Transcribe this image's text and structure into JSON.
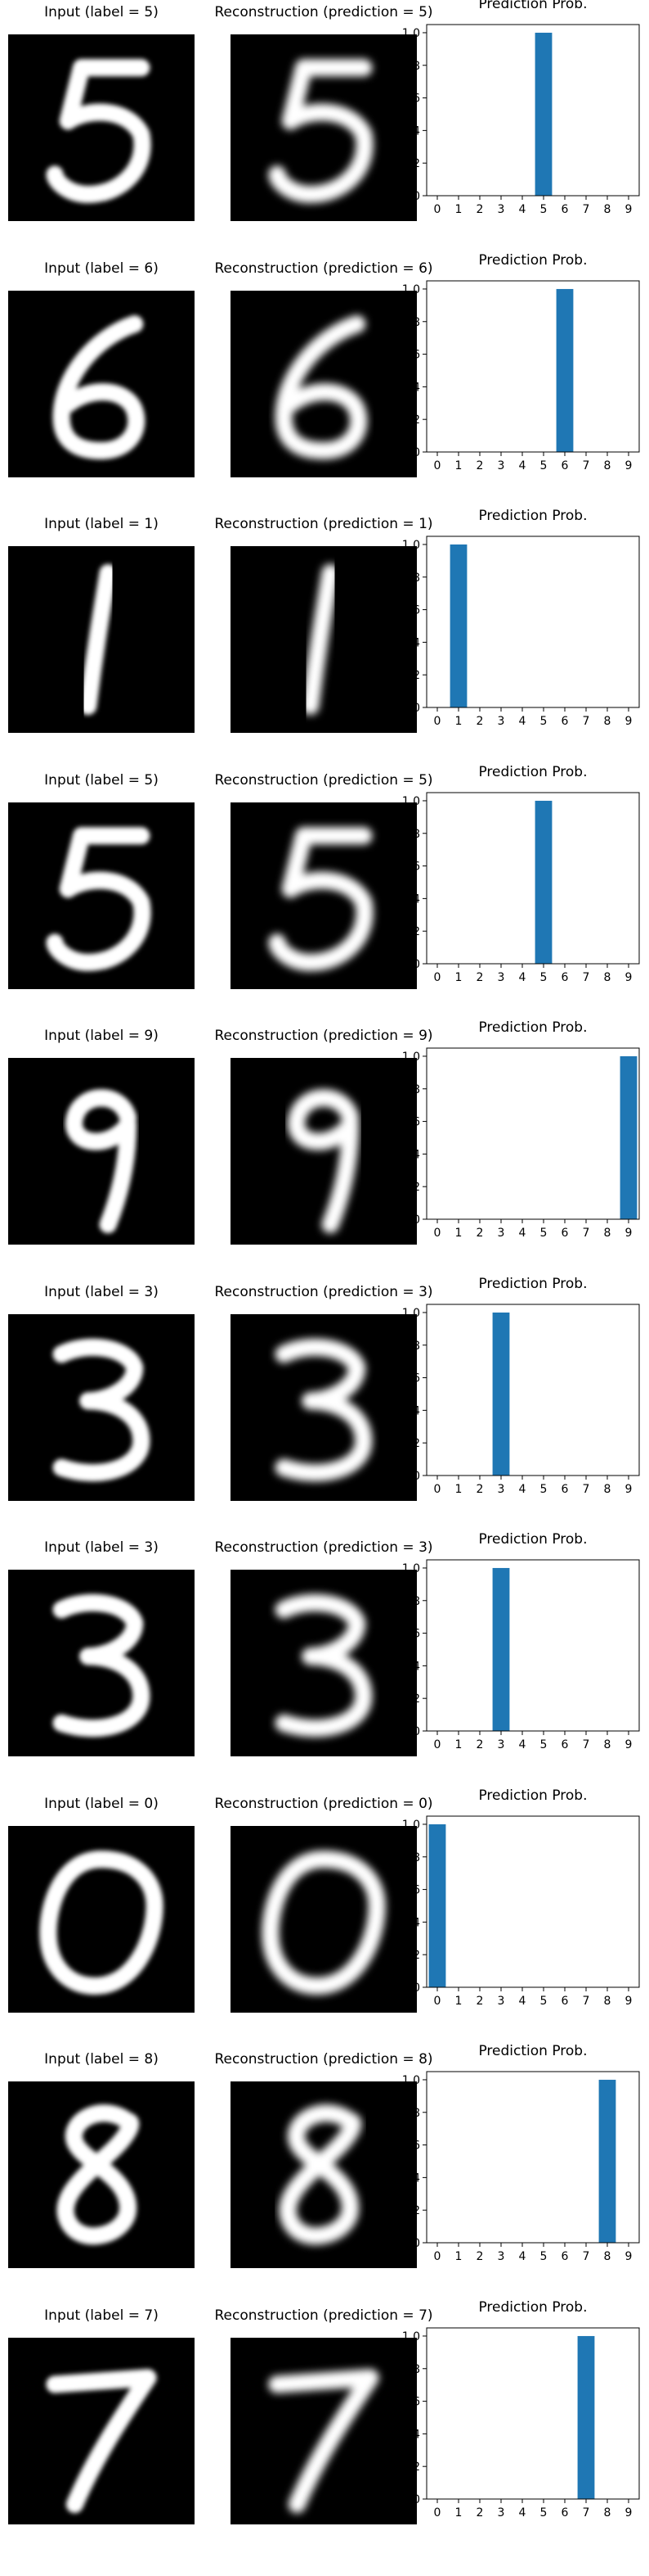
{
  "colors": {
    "bar": "#1f77b4",
    "background": "#ffffff",
    "digit_background": "#000000",
    "digit_ink": "#ffffff",
    "text": "#000000",
    "axis": "#000000"
  },
  "chart_data": [
    {
      "type": "bar",
      "input_title": "Input (label = 5)",
      "reconstruction_title": "Reconstruction (prediction = 5)",
      "title": "Prediction Prob.",
      "categories": [
        "0",
        "1",
        "2",
        "3",
        "4",
        "5",
        "6",
        "7",
        "8",
        "9"
      ],
      "values": [
        0,
        0,
        0,
        0,
        0,
        1.0,
        0,
        0,
        0,
        0
      ],
      "xlabel": "",
      "ylabel": "",
      "ylim": [
        0,
        1.05
      ],
      "yticks": [
        "0.0",
        "0.2",
        "0.4",
        "0.6",
        "0.8",
        "1.0"
      ],
      "grid": false
    },
    {
      "type": "bar",
      "input_title": "Input (label = 6)",
      "reconstruction_title": "Reconstruction (prediction = 6)",
      "title": "Prediction Prob.",
      "categories": [
        "0",
        "1",
        "2",
        "3",
        "4",
        "5",
        "6",
        "7",
        "8",
        "9"
      ],
      "values": [
        0,
        0,
        0,
        0,
        0,
        0,
        1.0,
        0,
        0,
        0
      ],
      "xlabel": "",
      "ylabel": "",
      "ylim": [
        0,
        1.05
      ],
      "yticks": [
        "0.0",
        "0.2",
        "0.4",
        "0.6",
        "0.8",
        "1.0"
      ],
      "grid": false
    },
    {
      "type": "bar",
      "input_title": "Input (label = 1)",
      "reconstruction_title": "Reconstruction (prediction = 1)",
      "title": "Prediction Prob.",
      "categories": [
        "0",
        "1",
        "2",
        "3",
        "4",
        "5",
        "6",
        "7",
        "8",
        "9"
      ],
      "values": [
        0,
        1.0,
        0,
        0,
        0,
        0,
        0,
        0,
        0,
        0
      ],
      "xlabel": "",
      "ylabel": "",
      "ylim": [
        0,
        1.05
      ],
      "yticks": [
        "0.0",
        "0.2",
        "0.4",
        "0.6",
        "0.8",
        "1.0"
      ],
      "grid": false
    },
    {
      "type": "bar",
      "input_title": "Input (label = 5)",
      "reconstruction_title": "Reconstruction (prediction = 5)",
      "title": "Prediction Prob.",
      "categories": [
        "0",
        "1",
        "2",
        "3",
        "4",
        "5",
        "6",
        "7",
        "8",
        "9"
      ],
      "values": [
        0,
        0,
        0,
        0,
        0,
        1.0,
        0,
        0,
        0,
        0
      ],
      "xlabel": "",
      "ylabel": "",
      "ylim": [
        0,
        1.05
      ],
      "yticks": [
        "0.0",
        "0.2",
        "0.4",
        "0.6",
        "0.8",
        "1.0"
      ],
      "grid": false
    },
    {
      "type": "bar",
      "input_title": "Input (label = 9)",
      "reconstruction_title": "Reconstruction (prediction = 9)",
      "title": "Prediction Prob.",
      "categories": [
        "0",
        "1",
        "2",
        "3",
        "4",
        "5",
        "6",
        "7",
        "8",
        "9"
      ],
      "values": [
        0,
        0,
        0,
        0,
        0,
        0,
        0,
        0,
        0,
        1.0
      ],
      "xlabel": "",
      "ylabel": "",
      "ylim": [
        0,
        1.05
      ],
      "yticks": [
        "0.0",
        "0.2",
        "0.4",
        "0.6",
        "0.8",
        "1.0"
      ],
      "grid": false
    },
    {
      "type": "bar",
      "input_title": "Input (label = 3)",
      "reconstruction_title": "Reconstruction (prediction = 3)",
      "title": "Prediction Prob.",
      "categories": [
        "0",
        "1",
        "2",
        "3",
        "4",
        "5",
        "6",
        "7",
        "8",
        "9"
      ],
      "values": [
        0,
        0,
        0,
        1.0,
        0,
        0,
        0,
        0,
        0,
        0
      ],
      "xlabel": "",
      "ylabel": "",
      "ylim": [
        0,
        1.05
      ],
      "yticks": [
        "0.0",
        "0.2",
        "0.4",
        "0.6",
        "0.8",
        "1.0"
      ],
      "grid": false
    },
    {
      "type": "bar",
      "input_title": "Input (label = 3)",
      "reconstruction_title": "Reconstruction (prediction = 3)",
      "title": "Prediction Prob.",
      "categories": [
        "0",
        "1",
        "2",
        "3",
        "4",
        "5",
        "6",
        "7",
        "8",
        "9"
      ],
      "values": [
        0,
        0,
        0,
        1.0,
        0,
        0,
        0,
        0,
        0,
        0
      ],
      "xlabel": "",
      "ylabel": "",
      "ylim": [
        0,
        1.05
      ],
      "yticks": [
        "0.0",
        "0.2",
        "0.4",
        "0.6",
        "0.8",
        "1.0"
      ],
      "grid": false
    },
    {
      "type": "bar",
      "input_title": "Input (label = 0)",
      "reconstruction_title": "Reconstruction (prediction = 0)",
      "title": "Prediction Prob.",
      "categories": [
        "0",
        "1",
        "2",
        "3",
        "4",
        "5",
        "6",
        "7",
        "8",
        "9"
      ],
      "values": [
        1.0,
        0,
        0,
        0,
        0,
        0,
        0,
        0,
        0,
        0
      ],
      "xlabel": "",
      "ylabel": "",
      "ylim": [
        0,
        1.05
      ],
      "yticks": [
        "0.0",
        "0.2",
        "0.4",
        "0.6",
        "0.8",
        "1.0"
      ],
      "grid": false
    },
    {
      "type": "bar",
      "input_title": "Input (label = 8)",
      "reconstruction_title": "Reconstruction (prediction = 8)",
      "title": "Prediction Prob.",
      "categories": [
        "0",
        "1",
        "2",
        "3",
        "4",
        "5",
        "6",
        "7",
        "8",
        "9"
      ],
      "values": [
        0,
        0,
        0,
        0,
        0,
        0,
        0,
        0,
        1.0,
        0
      ],
      "xlabel": "",
      "ylabel": "",
      "ylim": [
        0,
        1.05
      ],
      "yticks": [
        "0.0",
        "0.2",
        "0.4",
        "0.6",
        "0.8",
        "1.0"
      ],
      "grid": false
    },
    {
      "type": "bar",
      "input_title": "Input (label = 7)",
      "reconstruction_title": "Reconstruction (prediction = 7)",
      "title": "Prediction Prob.",
      "categories": [
        "0",
        "1",
        "2",
        "3",
        "4",
        "5",
        "6",
        "7",
        "8",
        "9"
      ],
      "values": [
        0,
        0,
        0,
        0,
        0,
        0,
        0,
        1.0,
        0,
        0
      ],
      "xlabel": "",
      "ylabel": "",
      "ylim": [
        0,
        1.05
      ],
      "yticks": [
        "0.0",
        "0.2",
        "0.4",
        "0.6",
        "0.8",
        "1.0"
      ],
      "grid": false
    }
  ]
}
